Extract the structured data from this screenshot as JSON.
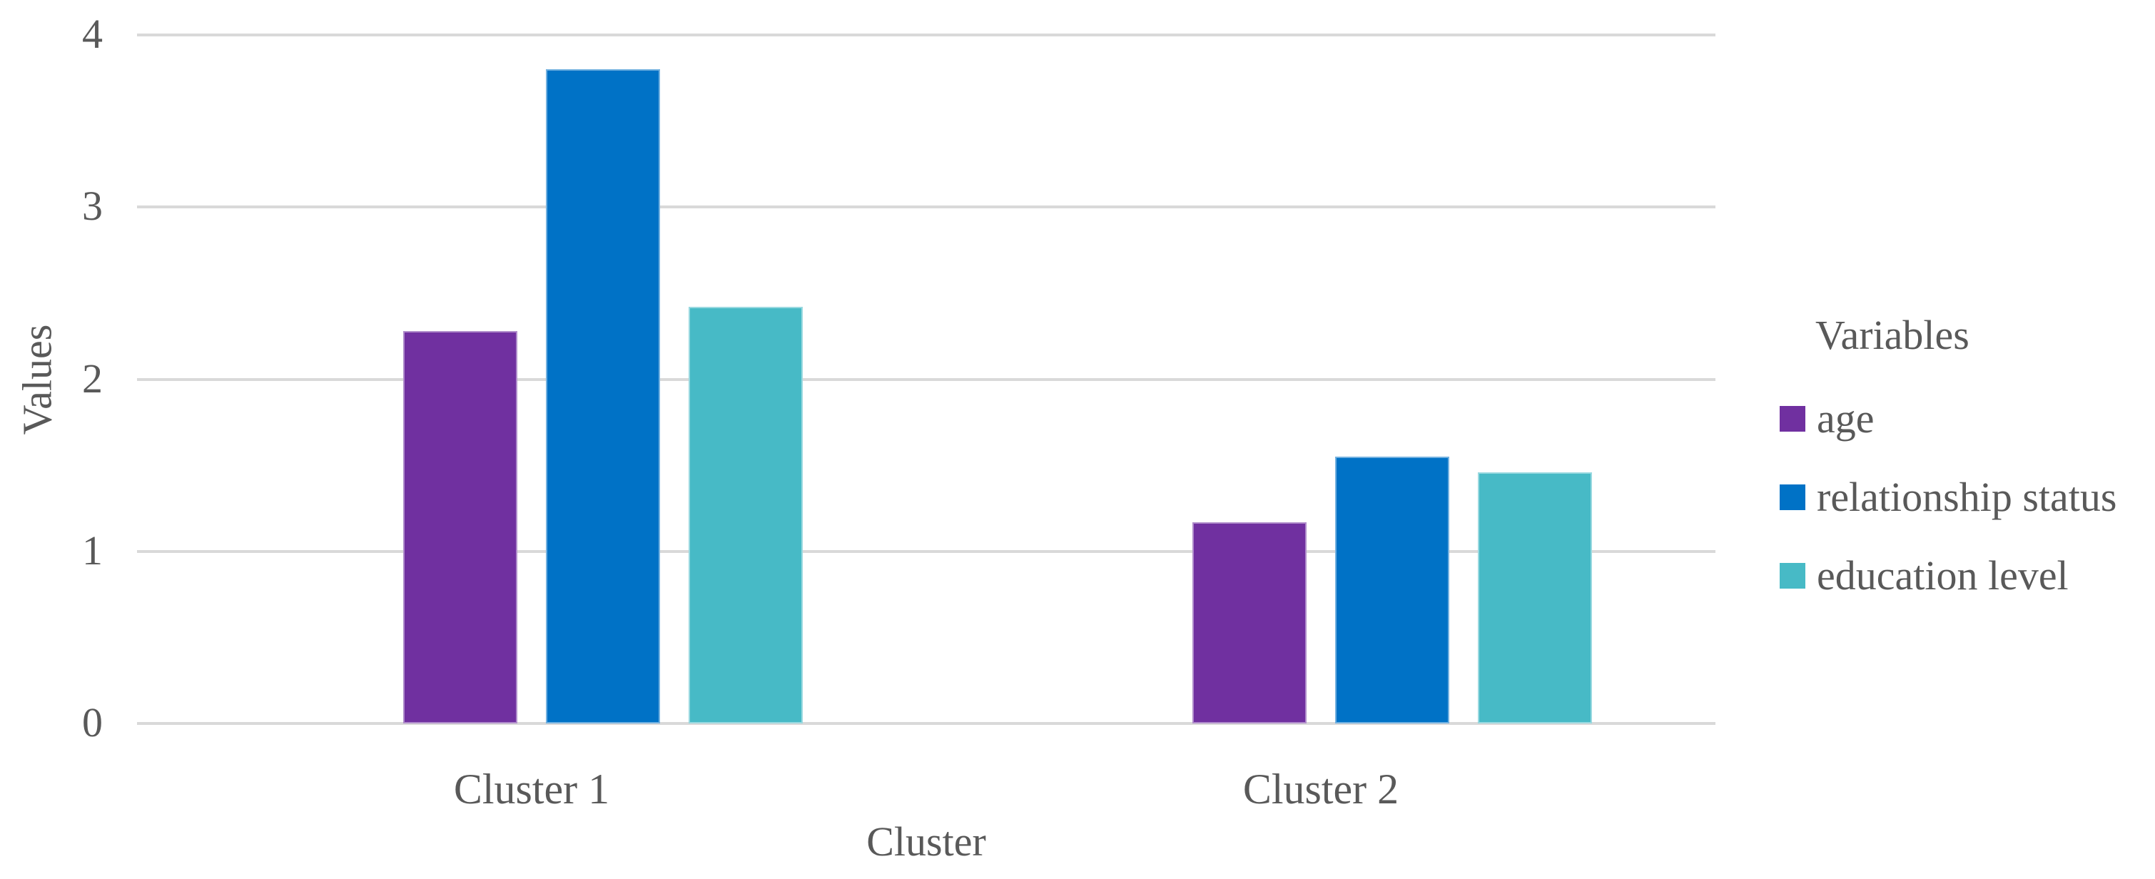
{
  "chart_data": {
    "type": "bar",
    "title": "",
    "categories": [
      "Cluster 1",
      "Cluster 2"
    ],
    "series": [
      {
        "name": "age",
        "color": "#7030A0",
        "values": [
          2.28,
          1.17
        ]
      },
      {
        "name": "relationship status",
        "color": "#0072C6",
        "values": [
          3.8,
          1.55
        ]
      },
      {
        "name": "education level",
        "color": "#47BAC6",
        "values": [
          2.42,
          1.46
        ]
      }
    ],
    "xlabel": "Cluster",
    "ylabel": "Values",
    "ylim": [
      0,
      4
    ],
    "yticks": [
      0,
      1,
      2,
      3,
      4
    ],
    "grid": "horizontal",
    "legend_title": "Variables",
    "legend_position": "right",
    "colors": {
      "gridline": "#D9D9D9",
      "text": "#595959",
      "background": "#FFFFFF"
    }
  }
}
